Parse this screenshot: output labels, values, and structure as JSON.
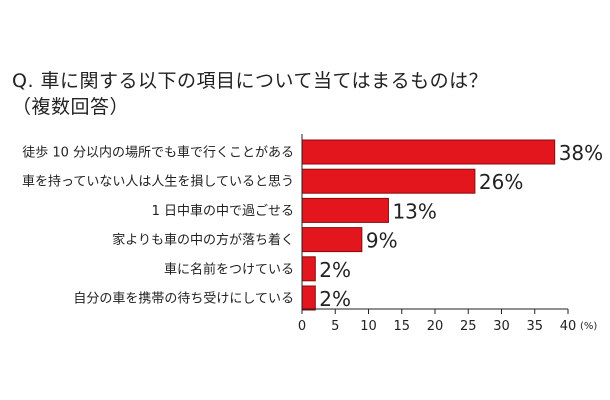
{
  "title": "Q. 車に関する以下の項目について当てはまるものは？",
  "subtitle": "（複数回答）",
  "chart_data": {
    "type": "bar",
    "orientation": "horizontal",
    "categories": [
      "徒歩 10 分以内の場所でも車で行くことがある",
      "車を持っていない人は人生を損していると思う",
      "1 日中車の中で過ごせる",
      "家よりも車の中の方が落ち着く",
      "車に名前をつけている",
      "自分の車を携帯の待ち受けにしている"
    ],
    "values": [
      38,
      26,
      13,
      9,
      2,
      2
    ],
    "value_labels": [
      "38%",
      "26%",
      "13%",
      "9%",
      "2%",
      "2%"
    ],
    "xlim": [
      0,
      40
    ],
    "xticks": [
      0,
      5,
      10,
      15,
      20,
      25,
      30,
      35,
      40
    ],
    "unit_label": "(%)",
    "grid": false,
    "bar_color": "#e3161d",
    "bar_stroke": "#8b0a0e"
  }
}
